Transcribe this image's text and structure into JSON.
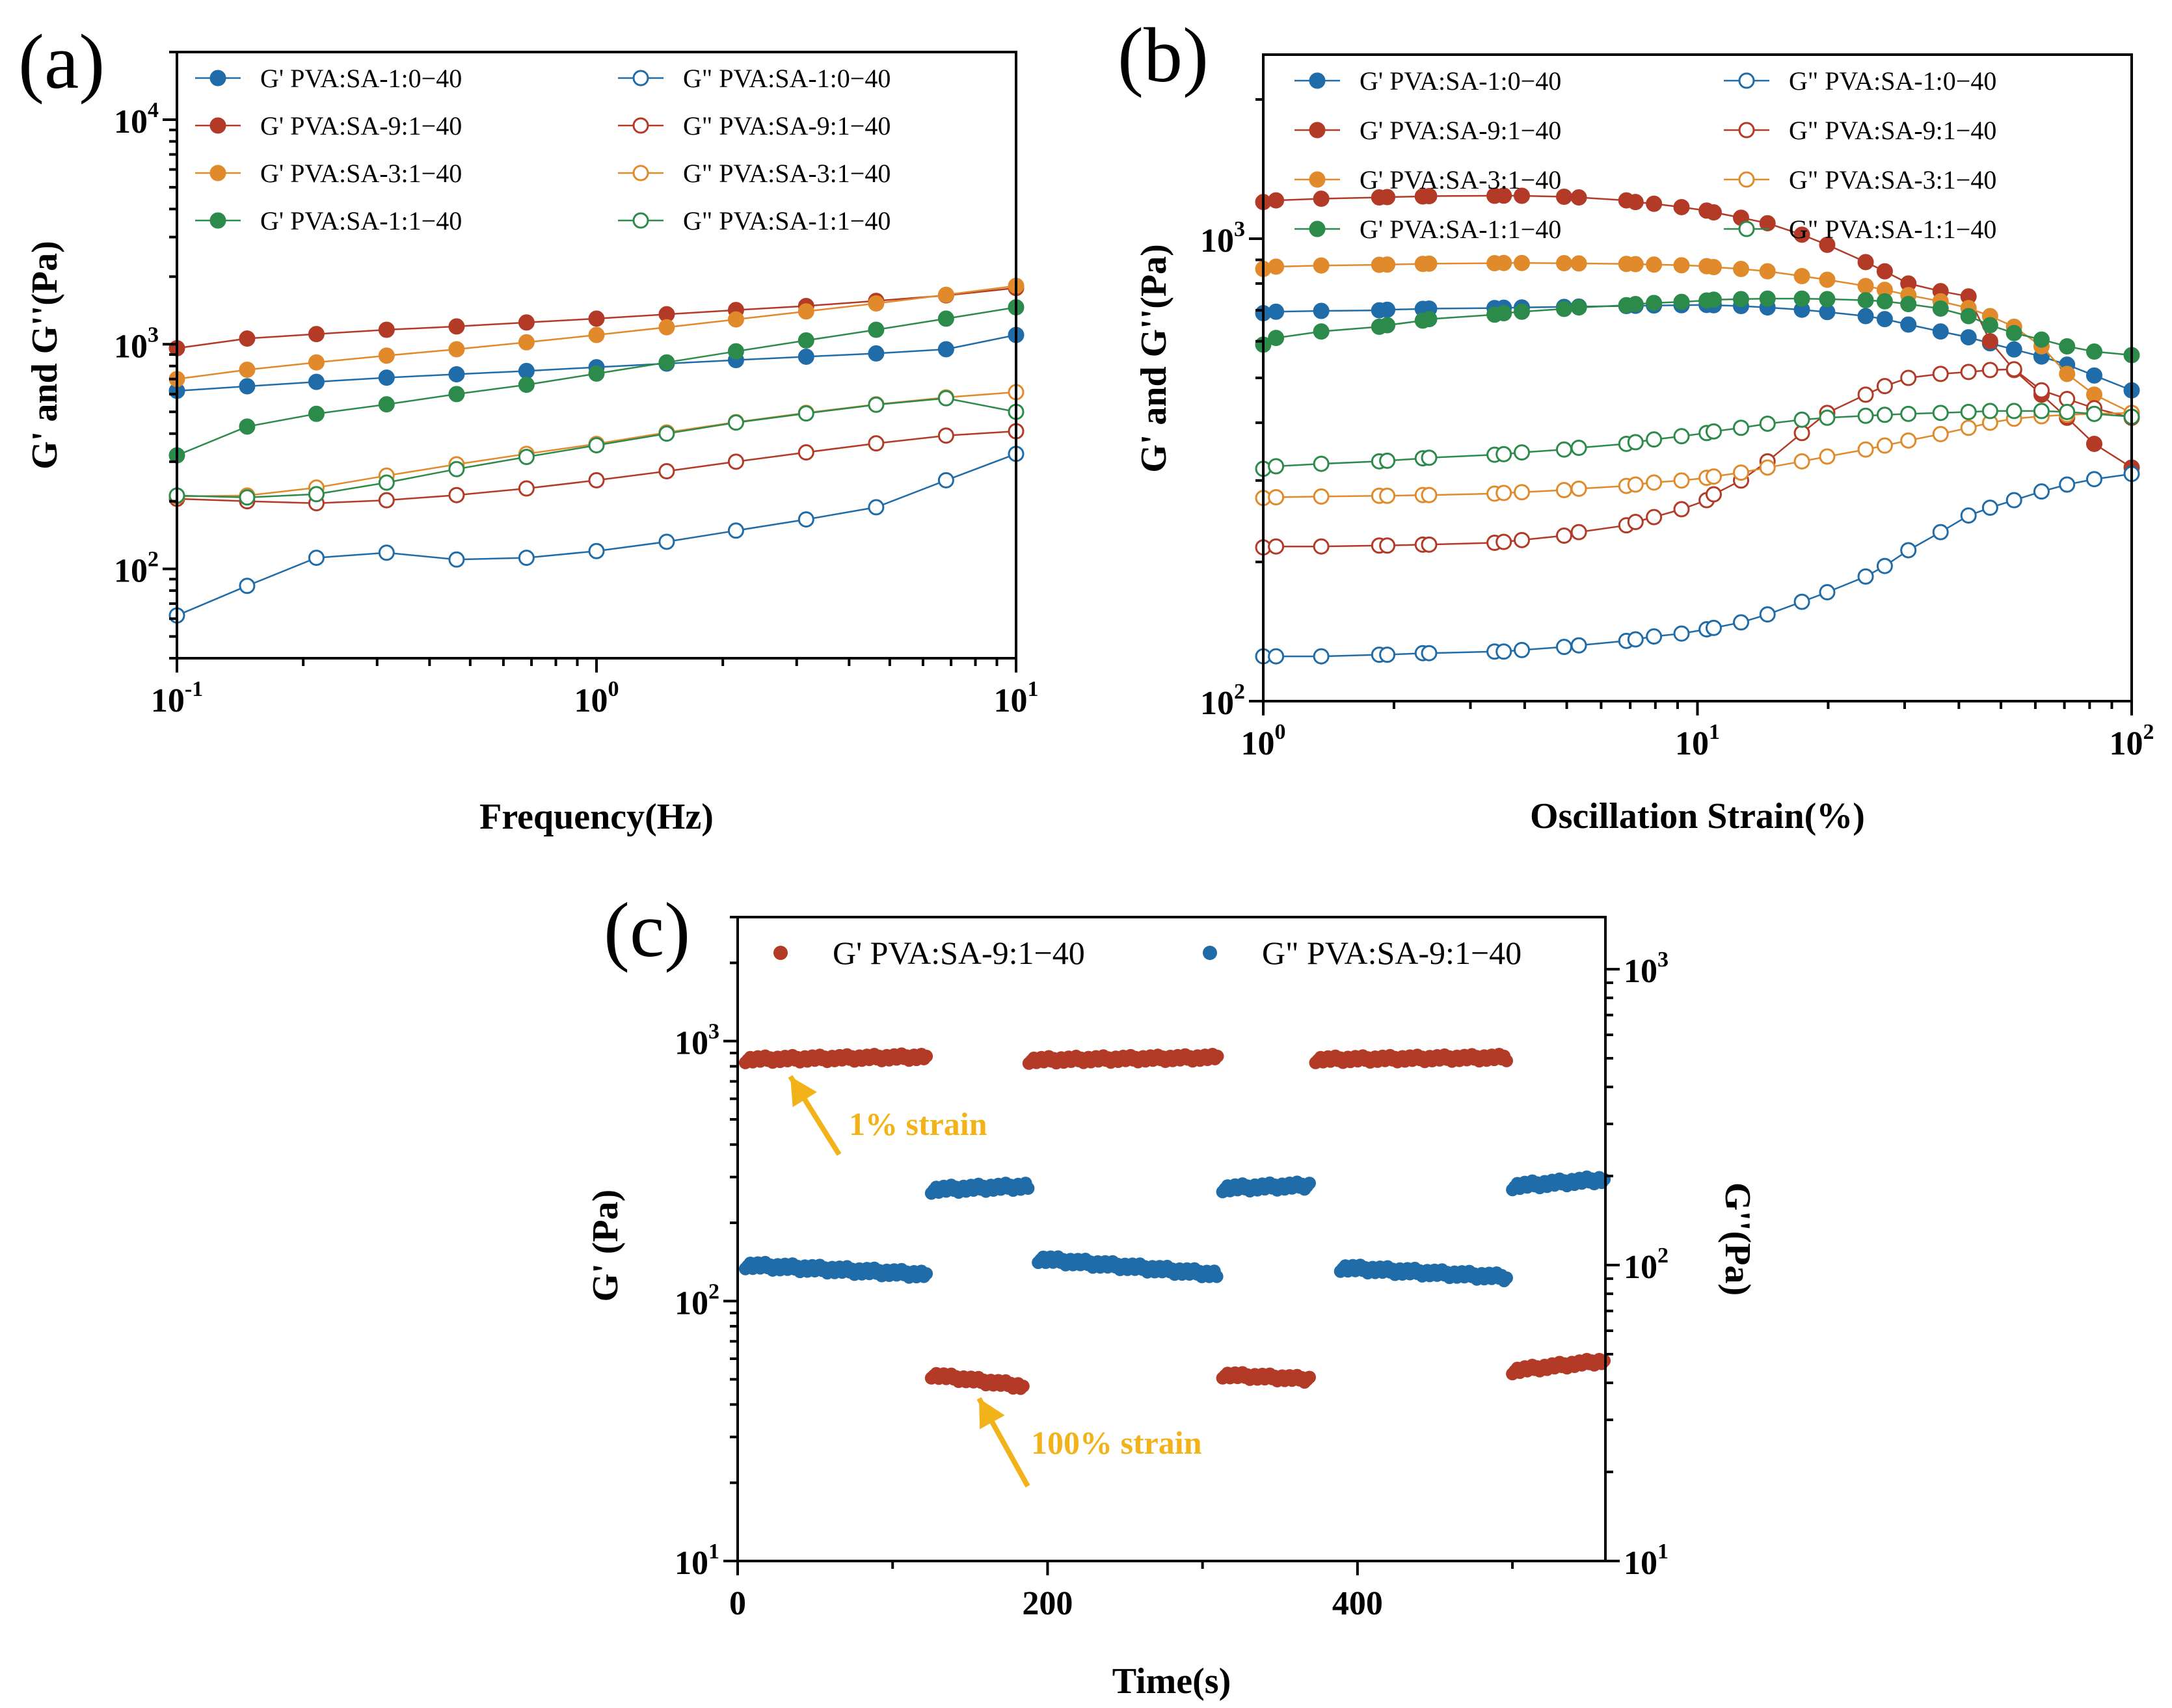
{
  "colors": {
    "blue": "#1f6ca8",
    "red": "#b23a26",
    "orange": "#e08a2c",
    "green": "#2c8a4a",
    "annotation": "#f2b31a"
  },
  "chart_data": [
    {
      "id": "a",
      "panel_label": "(a)",
      "type": "line",
      "xlabel": "Frequency(Hz)",
      "ylabel": "G' and G''(Pa)",
      "xscale": "log",
      "yscale": "log",
      "xlim": [
        0.1,
        10
      ],
      "ylim": [
        40,
        20000
      ],
      "xticks": [
        {
          "base": "10",
          "exp": "-1",
          "value": 0.1
        },
        {
          "base": "10",
          "exp": "0",
          "value": 1
        },
        {
          "base": "10",
          "exp": "1",
          "value": 10
        }
      ],
      "yticks": [
        {
          "base": "10",
          "exp": "2",
          "value": 100
        },
        {
          "base": "10",
          "exp": "3",
          "value": 1000
        },
        {
          "base": "10",
          "exp": "4",
          "value": 10000
        }
      ],
      "legend_position": "top-left",
      "x": [
        0.1,
        0.147,
        0.215,
        0.316,
        0.464,
        0.681,
        1.0,
        1.47,
        2.15,
        3.16,
        4.64,
        6.81,
        10.0
      ],
      "series": [
        {
          "name": "G'  PVA:SA-1:0−40",
          "color": "blue",
          "filled": true,
          "values": [
            620,
            650,
            680,
            710,
            735,
            760,
            790,
            820,
            850,
            880,
            910,
            950,
            1100
          ]
        },
        {
          "name": "G'  PVA:SA-9:1−40",
          "color": "red",
          "filled": true,
          "values": [
            960,
            1060,
            1110,
            1160,
            1200,
            1250,
            1300,
            1360,
            1420,
            1480,
            1560,
            1650,
            1780
          ]
        },
        {
          "name": "G'  PVA:SA-3:1−40",
          "color": "orange",
          "filled": true,
          "values": [
            700,
            770,
            830,
            890,
            950,
            1020,
            1100,
            1190,
            1290,
            1400,
            1520,
            1660,
            1820
          ]
        },
        {
          "name": "G'  PVA:SA-1:1−40",
          "color": "green",
          "filled": true,
          "values": [
            320,
            430,
            490,
            540,
            600,
            660,
            740,
            830,
            930,
            1040,
            1160,
            1300,
            1460
          ]
        },
        {
          "name": "G\"  PVA:SA-1:0−40",
          "color": "blue",
          "filled": false,
          "values": [
            62,
            84,
            112,
            118,
            110,
            112,
            120,
            132,
            148,
            166,
            188,
            248,
            325
          ]
        },
        {
          "name": "G\"  PVA:SA-9:1−40",
          "color": "red",
          "filled": false,
          "values": [
            205,
            200,
            196,
            202,
            213,
            228,
            248,
            272,
            300,
            330,
            362,
            392,
            410
          ]
        },
        {
          "name": "G\"  PVA:SA-3:1−40",
          "color": "orange",
          "filled": false,
          "values": [
            210,
            212,
            230,
            260,
            292,
            325,
            360,
            405,
            450,
            495,
            540,
            580,
            612
          ]
        },
        {
          "name": "G\"  PVA:SA-1:1−40",
          "color": "green",
          "filled": false,
          "values": [
            212,
            208,
            215,
            242,
            278,
            315,
            355,
            400,
            448,
            492,
            538,
            575,
            500
          ]
        }
      ]
    },
    {
      "id": "b",
      "panel_label": "(b)",
      "type": "line",
      "xlabel": "Oscillation Strain(%)",
      "ylabel": "G' and G''(Pa)",
      "xscale": "log",
      "yscale": "log",
      "xlim": [
        1,
        100
      ],
      "ylim": [
        100,
        2500
      ],
      "xticks": [
        {
          "base": "10",
          "exp": "0",
          "value": 1
        },
        {
          "base": "10",
          "exp": "1",
          "value": 10
        },
        {
          "base": "10",
          "exp": "2",
          "value": 100
        }
      ],
      "yticks": [
        {
          "base": "10",
          "exp": "2",
          "value": 100
        },
        {
          "base": "10",
          "exp": "3",
          "value": 1000
        }
      ],
      "legend_position": "top",
      "x": [
        1.0,
        1.07,
        1.36,
        1.85,
        1.93,
        2.33,
        2.41,
        3.41,
        3.58,
        3.94,
        4.93,
        5.33,
        6.86,
        7.2,
        7.94,
        9.19,
        10.5,
        10.9,
        12.6,
        14.5,
        17.4,
        19.9,
        24.4,
        27.0,
        30.6,
        36.3,
        42.1,
        47.2,
        53.6,
        62.0,
        71.0,
        82.0,
        100.0
      ],
      "series": [
        {
          "name": "G'  PVA:SA-1:0−40",
          "color": "blue",
          "filled": true,
          "values": [
            690,
            695,
            698,
            700,
            702,
            705,
            706,
            708,
            709,
            710,
            712,
            713,
            715,
            716,
            717,
            718,
            719,
            718,
            715,
            710,
            702,
            694,
            680,
            670,
            652,
            630,
            612,
            594,
            576,
            556,
            534,
            506,
            470
          ]
        },
        {
          "name": "G'  PVA:SA-9:1−40",
          "color": "red",
          "filled": true,
          "values": [
            1200,
            1210,
            1220,
            1228,
            1230,
            1234,
            1236,
            1238,
            1239,
            1238,
            1232,
            1228,
            1210,
            1200,
            1190,
            1170,
            1150,
            1140,
            1110,
            1080,
            1020,
            970,
            890,
            850,
            800,
            770,
            750,
            600,
            520,
            460,
            410,
            360,
            320
          ]
        },
        {
          "name": "G'  PVA:SA-3:1−40",
          "color": "orange",
          "filled": true,
          "values": [
            860,
            870,
            875,
            878,
            879,
            882,
            883,
            885,
            886,
            886,
            885,
            884,
            882,
            881,
            879,
            876,
            872,
            868,
            860,
            850,
            830,
            815,
            790,
            775,
            755,
            732,
            708,
            680,
            645,
            585,
            510,
            460,
            420
          ]
        },
        {
          "name": "G'  PVA:SA-1:1−40",
          "color": "green",
          "filled": true,
          "values": [
            590,
            610,
            630,
            645,
            650,
            665,
            670,
            685,
            690,
            695,
            705,
            710,
            718,
            722,
            726,
            730,
            735,
            738,
            740,
            742,
            742,
            740,
            736,
            732,
            722,
            706,
            680,
            650,
            625,
            605,
            585,
            570,
            560
          ]
        },
        {
          "name": "G\"  PVA:SA-1:0−40",
          "color": "blue",
          "filled": false,
          "values": [
            125,
            125,
            125,
            126,
            126,
            127,
            127,
            128,
            128,
            129,
            131,
            132,
            135,
            136,
            138,
            140,
            143,
            144,
            148,
            154,
            164,
            172,
            186,
            196,
            212,
            232,
            252,
            262,
            272,
            284,
            294,
            302,
            310
          ]
        },
        {
          "name": "G\"  PVA:SA-9:1−40",
          "color": "red",
          "filled": false,
          "values": [
            215,
            216,
            216,
            217,
            217,
            218,
            218,
            220,
            221,
            223,
            228,
            232,
            240,
            244,
            250,
            260,
            272,
            280,
            300,
            330,
            380,
            420,
            460,
            480,
            500,
            510,
            515,
            520,
            522,
            470,
            450,
            430,
            410
          ]
        },
        {
          "name": "G\"  PVA:SA-3:1−40",
          "color": "orange",
          "filled": false,
          "values": [
            275,
            276,
            277,
            278,
            278,
            279,
            279,
            281,
            282,
            283,
            286,
            288,
            292,
            294,
            297,
            300,
            304,
            306,
            312,
            320,
            330,
            338,
            350,
            357,
            366,
            378,
            390,
            400,
            408,
            413,
            416,
            418,
            420
          ]
        },
        {
          "name": "G\"  PVA:SA-1:1−40",
          "color": "green",
          "filled": false,
          "values": [
            318,
            322,
            326,
            330,
            331,
            335,
            336,
            341,
            342,
            345,
            350,
            353,
            360,
            363,
            368,
            374,
            380,
            383,
            390,
            398,
            406,
            410,
            414,
            416,
            418,
            420,
            422,
            424,
            424,
            424,
            422,
            418,
            412
          ]
        }
      ]
    },
    {
      "id": "c",
      "panel_label": "(c)",
      "type": "scatter",
      "xlabel": "Time(s)",
      "ylabel": "G' (Pa)",
      "y2label": "G''(Pa)",
      "xscale": "linear",
      "yscale": "log",
      "xlim": [
        0,
        560
      ],
      "ylim": [
        10,
        3000
      ],
      "y2lim": [
        10,
        1500
      ],
      "xticks": [
        {
          "base": "0",
          "exp": "",
          "value": 0
        },
        {
          "base": "200",
          "exp": "",
          "value": 200
        },
        {
          "base": "400",
          "exp": "",
          "value": 400
        }
      ],
      "yticks": [
        {
          "base": "10",
          "exp": "1",
          "value": 10
        },
        {
          "base": "10",
          "exp": "2",
          "value": 100
        },
        {
          "base": "10",
          "exp": "3",
          "value": 1000
        }
      ],
      "y2ticks": [
        {
          "base": "10",
          "exp": "1",
          "value": 10
        },
        {
          "base": "10",
          "exp": "2",
          "value": 100
        },
        {
          "base": "10",
          "exp": "3",
          "value": 1000
        }
      ],
      "legend_position": "top",
      "series": [
        {
          "name": "G'  PVA:SA-9:1−40",
          "color": "red",
          "axis": "left",
          "segments": [
            {
              "t0": 5,
              "t1": 122,
              "v0": 850,
              "v1": 870
            },
            {
              "t0": 125,
              "t1": 185,
              "v0": 52,
              "v1": 47
            },
            {
              "t0": 188,
              "t1": 310,
              "v0": 845,
              "v1": 865
            },
            {
              "t0": 313,
              "t1": 370,
              "v0": 52,
              "v1": 50
            },
            {
              "t0": 373,
              "t1": 497,
              "v0": 850,
              "v1": 865
            },
            {
              "t0": 500,
              "t1": 560,
              "v0": 54,
              "v1": 59
            }
          ]
        },
        {
          "name": "G\"  PVA:SA-9:1−40",
          "color": "blue",
          "axis": "right",
          "segments": [
            {
              "t0": 5,
              "t1": 122,
              "v0": 100,
              "v1": 93
            },
            {
              "t0": 125,
              "t1": 188,
              "v0": 180,
              "v1": 185
            },
            {
              "t0": 194,
              "t1": 310,
              "v0": 105,
              "v1": 93
            },
            {
              "t0": 313,
              "t1": 370,
              "v0": 182,
              "v1": 186
            },
            {
              "t0": 389,
              "t1": 497,
              "v0": 98,
              "v1": 91
            },
            {
              "t0": 500,
              "t1": 560,
              "v0": 185,
              "v1": 195
            }
          ]
        }
      ],
      "annotations": [
        {
          "text": "1% strain"
        },
        {
          "text": "100% strain"
        }
      ]
    }
  ]
}
